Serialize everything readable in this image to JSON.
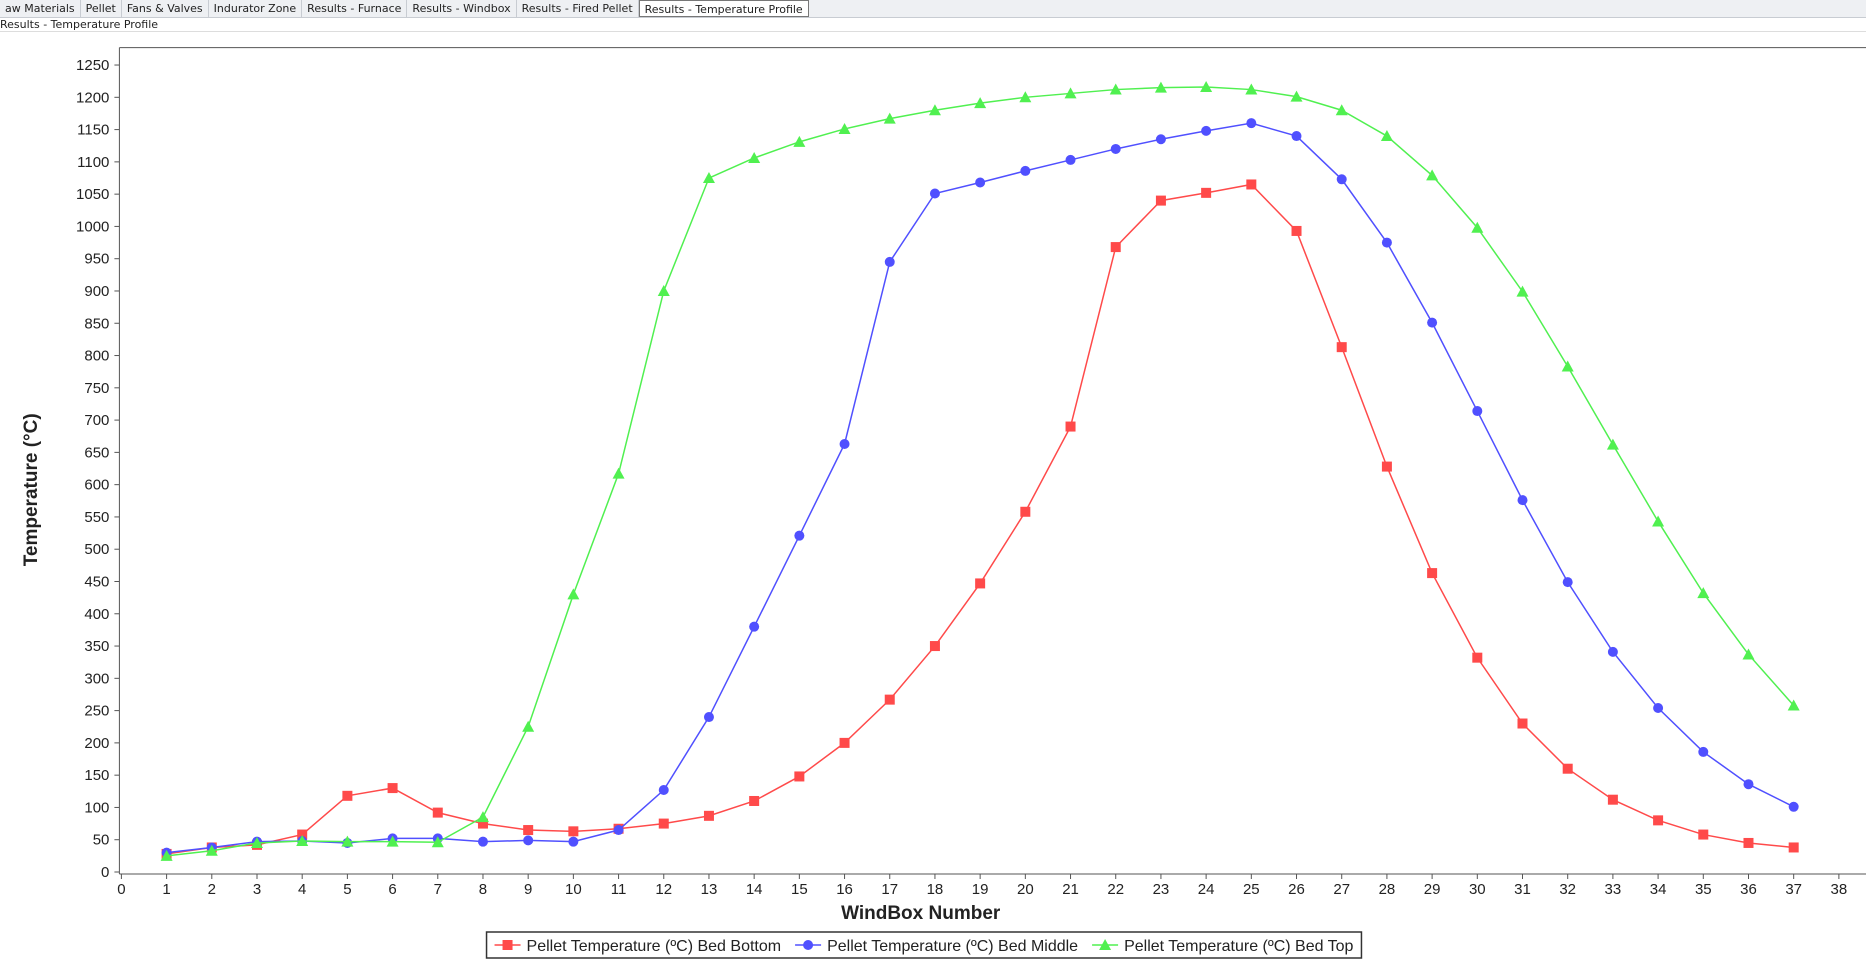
{
  "tabs": [
    "aw Materials",
    "Pellet",
    "Fans & Valves",
    "Indurator Zone",
    "Results - Furnace",
    "Results - Windbox",
    "Results - Fired Pellet",
    "Results - Temperature Profile"
  ],
  "panel_title": "Results - Temperature Profile",
  "chart_data": {
    "type": "line",
    "x_label": "WindBox Number",
    "y_label": "Temperature (°C)",
    "x": [
      1,
      2,
      3,
      4,
      5,
      6,
      7,
      8,
      9,
      10,
      11,
      12,
      13,
      14,
      15,
      16,
      17,
      18,
      19,
      20,
      21,
      22,
      23,
      24,
      25,
      26,
      27,
      28,
      29,
      30,
      31,
      32,
      33,
      34,
      35,
      36,
      37
    ],
    "series": [
      {
        "name": "Pellet Temperature (ºC) Bed Bottom",
        "color": "#ff4a4a",
        "marker": "square",
        "values": [
          28,
          38,
          42,
          58,
          118,
          130,
          92,
          75,
          65,
          63,
          67,
          75,
          87,
          110,
          148,
          200,
          267,
          350,
          447,
          558,
          690,
          968,
          1040,
          1052,
          1065,
          993,
          813,
          628,
          463,
          332,
          230,
          160,
          112,
          80,
          58,
          45,
          38
        ]
      },
      {
        "name": "Pellet Temperature (ºC) Bed Middle",
        "color": "#5050ff",
        "marker": "circle",
        "values": [
          30,
          38,
          47,
          48,
          45,
          52,
          52,
          47,
          49,
          47,
          65,
          127,
          240,
          380,
          521,
          663,
          945,
          1051,
          1068,
          1086,
          1103,
          1120,
          1135,
          1148,
          1160,
          1140,
          1073,
          975,
          851,
          714,
          576,
          449,
          341,
          254,
          186,
          136,
          101
        ]
      },
      {
        "name": "Pellet Temperature (ºC) Bed Top",
        "color": "#50f050",
        "marker": "triangle",
        "values": [
          25,
          33,
          45,
          48,
          47,
          47,
          46,
          85,
          225,
          430,
          617,
          900,
          1075,
          1106,
          1131,
          1151,
          1167,
          1180,
          1191,
          1200,
          1206,
          1212,
          1215,
          1216,
          1212,
          1201,
          1180,
          1140,
          1079,
          998,
          899,
          783,
          662,
          543,
          432,
          337,
          258
        ]
      }
    ],
    "xlim": [
      0,
      38.6
    ],
    "ylim": [
      0,
      1277
    ],
    "xticks": [
      0,
      1,
      2,
      3,
      4,
      5,
      6,
      7,
      8,
      9,
      10,
      11,
      12,
      13,
      14,
      15,
      16,
      17,
      18,
      19,
      20,
      21,
      22,
      23,
      24,
      25,
      26,
      27,
      28,
      29,
      30,
      31,
      32,
      33,
      34,
      35,
      36,
      37,
      38
    ],
    "yticks": [
      0,
      50,
      100,
      150,
      200,
      250,
      300,
      350,
      400,
      450,
      500,
      550,
      600,
      650,
      700,
      750,
      800,
      850,
      900,
      950,
      1000,
      1050,
      1100,
      1150,
      1200,
      1250
    ],
    "grid": false,
    "legend_position": "bottom"
  }
}
